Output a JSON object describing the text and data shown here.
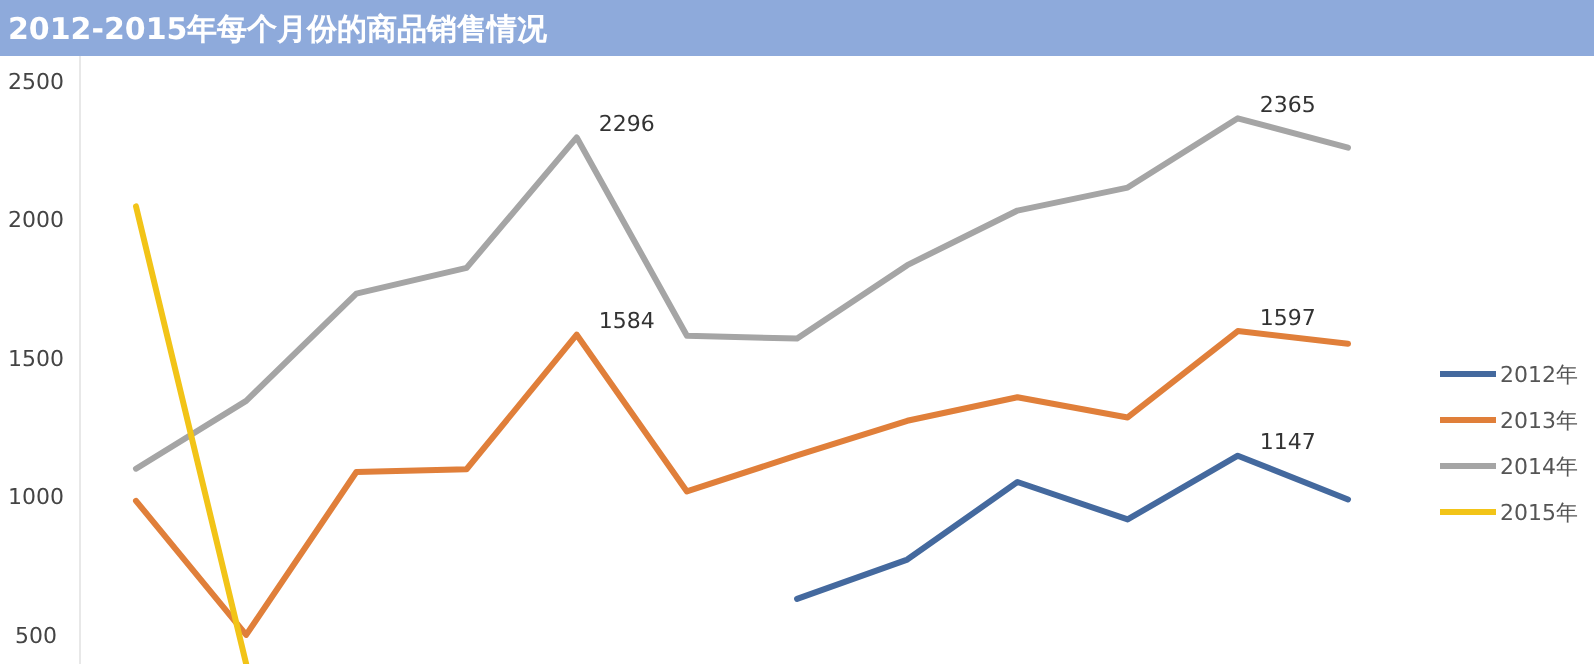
{
  "chart_data": {
    "type": "line",
    "title": "2012-2015年每个月份的商品销售情况",
    "categories": [
      null,
      null,
      null,
      null,
      null,
      null,
      null,
      null,
      null,
      null,
      null,
      null
    ],
    "series": [
      {
        "name": "2012年",
        "color": "#44699e",
        "values": [
          null,
          null,
          null,
          null,
          null,
          null,
          630,
          772,
          1052,
          917,
          1147,
          989
        ],
        "value_labels": [
          null,
          null,
          null,
          null,
          null,
          null,
          null,
          null,
          null,
          null,
          "1147",
          null
        ]
      },
      {
        "name": "2013年",
        "color": "#e07f3a",
        "values": [
          984,
          500,
          1088,
          1098,
          1584,
          1018,
          1148,
          1273,
          1358,
          1285,
          1597,
          1551
        ],
        "value_labels": [
          null,
          null,
          null,
          null,
          "1584",
          null,
          null,
          null,
          null,
          null,
          "1597",
          null
        ]
      },
      {
        "name": "2014年",
        "color": "#a5a5a5",
        "values": [
          1100,
          1345,
          1732,
          1825,
          2296,
          1580,
          1570,
          1835,
          2032,
          2115,
          2365,
          2259
        ],
        "value_labels": [
          null,
          null,
          null,
          null,
          "2296",
          null,
          null,
          null,
          null,
          null,
          "2365",
          null
        ]
      },
      {
        "name": "2015年",
        "color": "#f2c418",
        "values": [
          2047,
          395,
          null,
          null,
          null,
          null,
          null,
          null,
          null,
          null,
          null,
          null
        ]
      }
    ],
    "ylim": [
      395,
      2590
    ],
    "yticks": [
      500,
      1000,
      1500,
      2000,
      2500
    ],
    "tick_labels": "y",
    "grid": false,
    "legend": "right",
    "line_style": "solid",
    "marker": "none"
  }
}
